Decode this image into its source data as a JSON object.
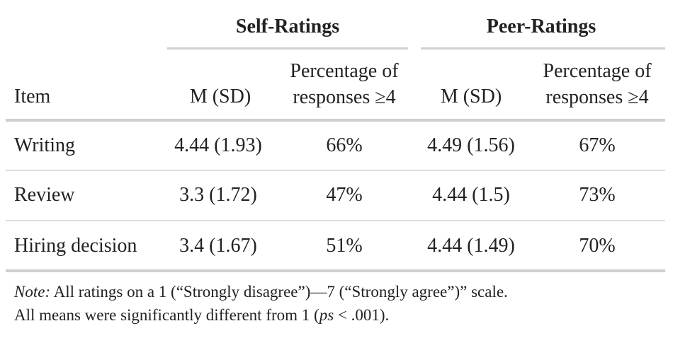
{
  "table": {
    "group_headers": [
      "Self-Ratings",
      "Peer-Ratings"
    ],
    "columns": {
      "item": "Item",
      "self_m": "M (SD)",
      "self_pct_line1": "Percentage of",
      "self_pct_line2": "responses ≥4",
      "peer_m": "M (SD)",
      "peer_pct_line1": "Percentage of",
      "peer_pct_line2": "responses ≥4"
    },
    "rows": [
      {
        "item": "Writing",
        "self_m": "4.44 (1.93)",
        "self_pct": "66%",
        "peer_m": "4.49 (1.56)",
        "peer_pct": "67%"
      },
      {
        "item": "Review",
        "self_m": "3.3 (1.72)",
        "self_pct": "47%",
        "peer_m": "4.44 (1.5)",
        "peer_pct": "73%"
      },
      {
        "item": "Hiring decision",
        "self_m": "3.4 (1.67)",
        "self_pct": "51%",
        "peer_m": "4.44 (1.49)",
        "peer_pct": "70%"
      }
    ]
  },
  "note": {
    "label": "Note:",
    "line1_rest": " All ratings on a 1 (“Strongly disagree”)—7 (“Strongly agree”)” scale.",
    "line2_before": "All means were significantly different from 1 (",
    "line2_italic": "ps",
    "line2_after": " < .001)."
  }
}
